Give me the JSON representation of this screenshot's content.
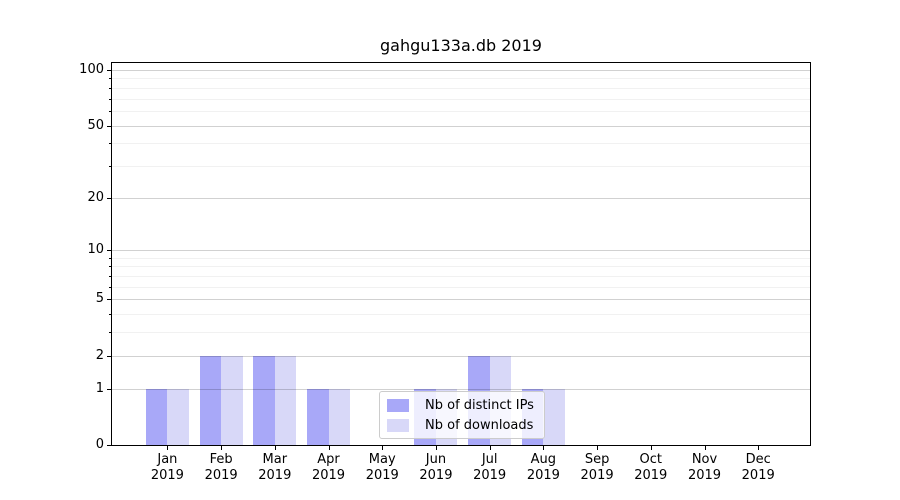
{
  "title": "gahgu133a.db 2019",
  "legend": {
    "items": [
      {
        "label": "Nb of distinct IPs"
      },
      {
        "label": "Nb of downloads"
      }
    ]
  },
  "colors": {
    "bar_distinct_ips": "#a8a8f8",
    "bar_downloads": "#d8d8f8",
    "grid_major": "rgba(0,0,0,0.18)",
    "grid_minor": "rgba(0,0,0,0.055)",
    "axis": "#000000",
    "legend_border": "#cccccc",
    "text": "#000000"
  },
  "chart_data": {
    "type": "bar",
    "title": "gahgu133a.db 2019",
    "categories": [
      "Jan 2019",
      "Feb 2019",
      "Mar 2019",
      "Apr 2019",
      "May 2019",
      "Jun 2019",
      "Jul 2019",
      "Aug 2019",
      "Sep 2019",
      "Oct 2019",
      "Nov 2019",
      "Dec 2019"
    ],
    "x_tick_months": [
      "Jan",
      "Feb",
      "Mar",
      "Apr",
      "May",
      "Jun",
      "Jul",
      "Aug",
      "Sep",
      "Oct",
      "Nov",
      "Dec"
    ],
    "x_tick_year": "2019",
    "series": [
      {
        "name": "Nb of distinct IPs",
        "color": "#a8a8f8",
        "values": [
          1,
          2,
          2,
          1,
          0,
          1,
          2,
          1,
          0,
          0,
          0,
          0
        ]
      },
      {
        "name": "Nb of downloads",
        "color": "#d8d8f8",
        "values": [
          1,
          2,
          2,
          1,
          0,
          1,
          2,
          1,
          0,
          0,
          0,
          0
        ]
      }
    ],
    "xlabel": "",
    "ylabel": "",
    "yscale": "log1p",
    "y_major_ticks": [
      0,
      1,
      2,
      5,
      10,
      20,
      50,
      100
    ],
    "y_minor_ticks": [
      3,
      4,
      6,
      7,
      8,
      9,
      30,
      40,
      60,
      70,
      80,
      90
    ],
    "ylim": [
      0,
      110
    ],
    "grid": "horizontal",
    "legend_position": "lower center"
  }
}
